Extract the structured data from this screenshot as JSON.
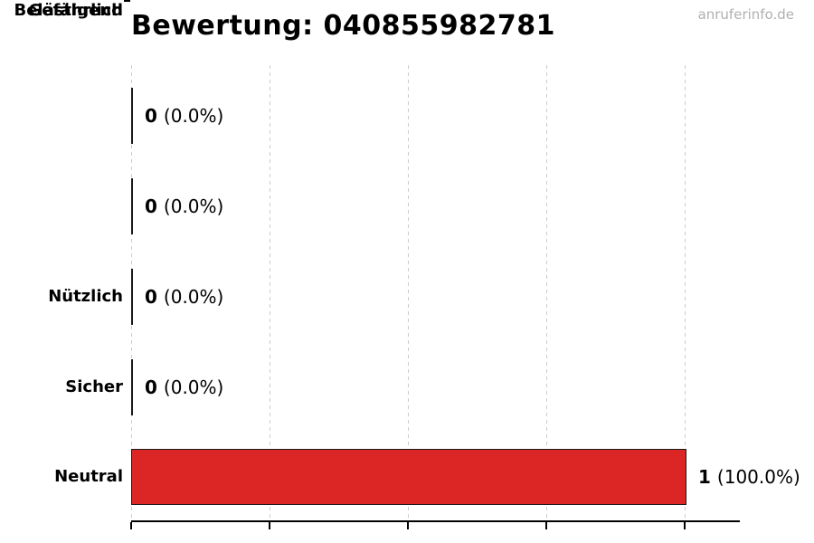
{
  "watermark": {
    "text": "anruferinfo.de"
  },
  "chart_data": {
    "type": "bar",
    "orientation": "horizontal",
    "title": "Bewertung: 040855982781",
    "categories": [
      "Nützlich",
      "Sicher",
      "Neutral",
      "Belästigend",
      "Gefährlich"
    ],
    "values": [
      0,
      0,
      0,
      0,
      1
    ],
    "percentages": [
      0.0,
      0.0,
      0.0,
      0.0,
      100.0
    ],
    "value_labels": [
      {
        "count": "0",
        "pct": "(0.0%)"
      },
      {
        "count": "0",
        "pct": "(0.0%)"
      },
      {
        "count": "0",
        "pct": "(0.0%)"
      },
      {
        "count": "0",
        "pct": "(0.0%)"
      },
      {
        "count": "1",
        "pct": "(100.0%)"
      }
    ],
    "xlim": [
      0,
      1.1
    ],
    "xticks": [
      0,
      0.25,
      0.5,
      0.75,
      1.0
    ],
    "x_tick_labels_visible": false,
    "grid": true,
    "legend": "none",
    "colors": {
      "bar_fill": "#dc2626",
      "bar_edge": "#1a1a1a",
      "gridline": "#cccccc",
      "axis": "#000000",
      "title_text": "#000000",
      "watermark_text": "#b0b0b0"
    }
  }
}
